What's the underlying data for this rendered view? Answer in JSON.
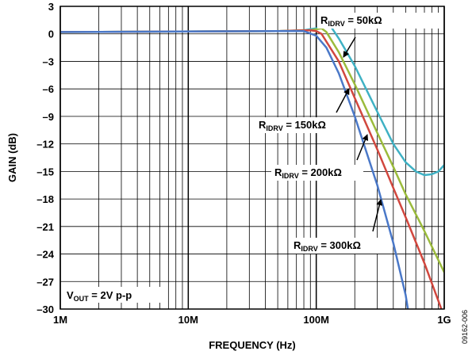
{
  "chart_data": {
    "type": "line",
    "xlabel": "FREQUENCY (Hz)",
    "ylabel": "GAIN (dB)",
    "x_scale": "log",
    "xlim": [
      1000000,
      1000000000
    ],
    "ylim": [
      -30,
      3
    ],
    "x_ticks": [
      {
        "value": 1000000,
        "label": "1M"
      },
      {
        "value": 10000000,
        "label": "10M"
      },
      {
        "value": 100000000,
        "label": "100M"
      },
      {
        "value": 1000000000,
        "label": "1G"
      }
    ],
    "y_ticks": [
      {
        "value": 3,
        "label": "3"
      },
      {
        "value": 0,
        "label": "0"
      },
      {
        "value": -3,
        "label": "–3"
      },
      {
        "value": -6,
        "label": "–6"
      },
      {
        "value": -9,
        "label": "–9"
      },
      {
        "value": -12,
        "label": "–12"
      },
      {
        "value": -15,
        "label": "–15"
      },
      {
        "value": -18,
        "label": "–18"
      },
      {
        "value": -21,
        "label": "–21"
      },
      {
        "value": -24,
        "label": "–24"
      },
      {
        "value": -27,
        "label": "–27"
      },
      {
        "value": -30,
        "label": "–30"
      }
    ],
    "grid": true,
    "annotation": {
      "main": "V",
      "sub": "OUT",
      "rest": " = 2V p-p"
    },
    "figure_id": "09162-006",
    "series": [
      {
        "key": "50k",
        "color": "#3fb1c4",
        "label": {
          "main": "R",
          "sub": "IDRV",
          "rest": " = 50kΩ"
        },
        "points": [
          [
            1000000,
            0.2
          ],
          [
            50000000,
            0.3
          ],
          [
            80000000,
            0.4
          ],
          [
            100000000,
            0.6
          ],
          [
            110000000,
            0.9
          ],
          [
            120000000,
            1.1
          ],
          [
            130000000,
            0.8
          ],
          [
            150000000,
            -0.5
          ],
          [
            200000000,
            -3.5
          ],
          [
            300000000,
            -8.5
          ],
          [
            400000000,
            -12.0
          ],
          [
            500000000,
            -14.0
          ],
          [
            600000000,
            -15.0
          ],
          [
            700000000,
            -15.4
          ],
          [
            800000000,
            -15.3
          ],
          [
            900000000,
            -15.0
          ],
          [
            1000000000,
            -14.3
          ]
        ]
      },
      {
        "key": "150k",
        "color": "#9bbb3c",
        "label": {
          "main": "R",
          "sub": "IDRV",
          "rest": " = 150kΩ"
        },
        "points": [
          [
            1000000,
            0.2
          ],
          [
            50000000,
            0.3
          ],
          [
            90000000,
            0.4
          ],
          [
            100000000,
            0.5
          ],
          [
            110000000,
            0.6
          ],
          [
            120000000,
            0.2
          ],
          [
            150000000,
            -2.0
          ],
          [
            200000000,
            -5.5
          ],
          [
            300000000,
            -10.8
          ],
          [
            400000000,
            -14.5
          ],
          [
            500000000,
            -17.5
          ],
          [
            700000000,
            -21.5
          ],
          [
            1000000000,
            -26.0
          ]
        ]
      },
      {
        "key": "200k",
        "color": "#d1473e",
        "label": {
          "main": "R",
          "sub": "IDRV",
          "rest": " = 200kΩ"
        },
        "points": [
          [
            1000000,
            0.2
          ],
          [
            50000000,
            0.3
          ],
          [
            90000000,
            0.4
          ],
          [
            100000000,
            0.3
          ],
          [
            110000000,
            0.0
          ],
          [
            150000000,
            -3.0
          ],
          [
            200000000,
            -7.0
          ],
          [
            300000000,
            -12.6
          ],
          [
            400000000,
            -16.8
          ],
          [
            500000000,
            -20.0
          ],
          [
            700000000,
            -25.0
          ],
          [
            950000000,
            -30.0
          ]
        ]
      },
      {
        "key": "300k",
        "color": "#4a78c8",
        "label": {
          "main": "R",
          "sub": "IDRV",
          "rest": " = 300kΩ"
        },
        "points": [
          [
            1000000,
            0.2
          ],
          [
            50000000,
            0.3
          ],
          [
            80000000,
            0.3
          ],
          [
            100000000,
            -0.2
          ],
          [
            120000000,
            -1.5
          ],
          [
            150000000,
            -4.3
          ],
          [
            200000000,
            -9.0
          ],
          [
            300000000,
            -16.5
          ],
          [
            400000000,
            -22.8
          ],
          [
            500000000,
            -28.5
          ],
          [
            520000000,
            -30.0
          ]
        ]
      }
    ]
  }
}
